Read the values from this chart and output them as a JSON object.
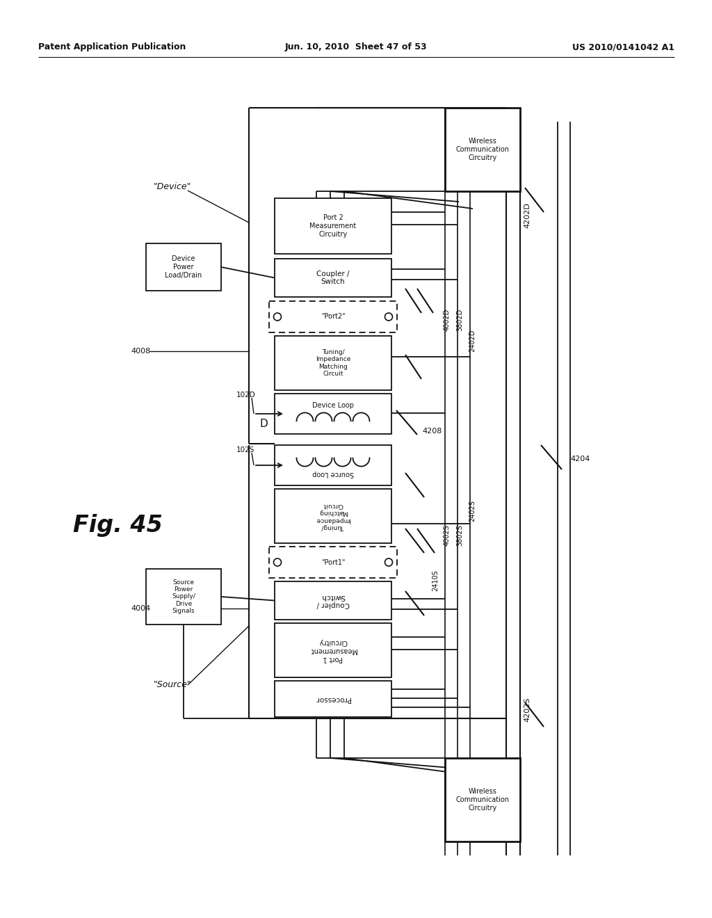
{
  "header_left": "Patent Application Publication",
  "header_center": "Jun. 10, 2010  Sheet 47 of 53",
  "header_right": "US 2010/0141042 A1",
  "fig_label": "Fig. 45",
  "bg_color": "#ffffff",
  "fg_color": "#111111",
  "fig_width": 10.24,
  "fig_height": 13.2
}
